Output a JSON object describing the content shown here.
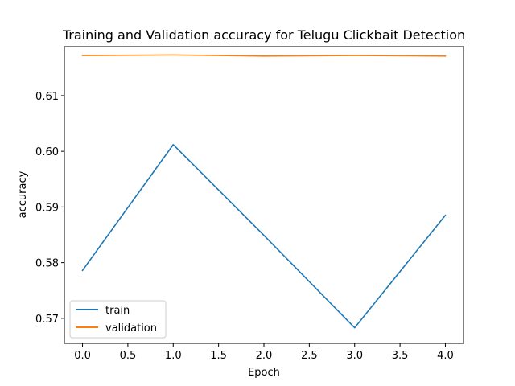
{
  "chart_data": {
    "type": "line",
    "title": "Training and Validation accuracy for Telugu Clickbait Detection",
    "xlabel": "Epoch",
    "ylabel": "accuracy",
    "x": [
      0,
      1,
      2,
      3,
      4
    ],
    "xlim": [
      -0.2,
      4.2
    ],
    "ylim": [
      0.5655,
      0.6188
    ],
    "xticks": [
      0.0,
      0.5,
      1.0,
      1.5,
      2.0,
      2.5,
      3.0,
      3.5,
      4.0
    ],
    "xtick_labels": [
      "0.0",
      "0.5",
      "1.0",
      "1.5",
      "2.0",
      "2.5",
      "3.0",
      "3.5",
      "4.0"
    ],
    "yticks": [
      0.57,
      0.58,
      0.59,
      0.6,
      0.61
    ],
    "ytick_labels": [
      "0.57",
      "0.58",
      "0.59",
      "0.60",
      "0.61"
    ],
    "grid": false,
    "legend_position": "lower-left",
    "series": [
      {
        "name": "train",
        "color": "#1f77b4",
        "values": [
          0.5786,
          0.6012,
          0.5849,
          0.5683,
          0.5885
        ]
      },
      {
        "name": "validation",
        "color": "#ff7f0e",
        "values": [
          0.6172,
          0.6173,
          0.6171,
          0.6172,
          0.6171
        ]
      }
    ]
  }
}
